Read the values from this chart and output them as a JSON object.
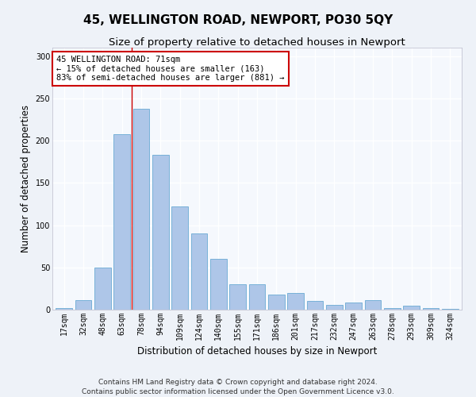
{
  "title": "45, WELLINGTON ROAD, NEWPORT, PO30 5QY",
  "subtitle": "Size of property relative to detached houses in Newport",
  "xlabel": "Distribution of detached houses by size in Newport",
  "ylabel": "Number of detached properties",
  "categories": [
    "17sqm",
    "32sqm",
    "48sqm",
    "63sqm",
    "78sqm",
    "94sqm",
    "109sqm",
    "124sqm",
    "140sqm",
    "155sqm",
    "171sqm",
    "186sqm",
    "201sqm",
    "217sqm",
    "232sqm",
    "247sqm",
    "263sqm",
    "278sqm",
    "293sqm",
    "309sqm",
    "324sqm"
  ],
  "values": [
    2,
    11,
    50,
    208,
    238,
    183,
    122,
    90,
    60,
    30,
    30,
    18,
    20,
    10,
    6,
    8,
    11,
    2,
    5,
    2,
    1
  ],
  "bar_color": "#aec6e8",
  "bar_edge_color": "#6aaad4",
  "vline_x": 3.5,
  "vline_color": "#cc0000",
  "annotation_text": "45 WELLINGTON ROAD: 71sqm\n← 15% of detached houses are smaller (163)\n83% of semi-detached houses are larger (881) →",
  "annotation_box_color": "#ffffff",
  "annotation_box_edge_color": "#cc0000",
  "ylim": [
    0,
    310
  ],
  "yticks": [
    0,
    50,
    100,
    150,
    200,
    250,
    300
  ],
  "footer_text": "Contains HM Land Registry data © Crown copyright and database right 2024.\nContains public sector information licensed under the Open Government Licence v3.0.",
  "bg_color": "#eef2f8",
  "plot_bg_color": "#f5f8fd",
  "grid_color": "#ffffff",
  "title_fontsize": 11,
  "subtitle_fontsize": 9.5,
  "axis_label_fontsize": 8.5,
  "tick_fontsize": 7,
  "footer_fontsize": 6.5,
  "annotation_fontsize": 7.5
}
